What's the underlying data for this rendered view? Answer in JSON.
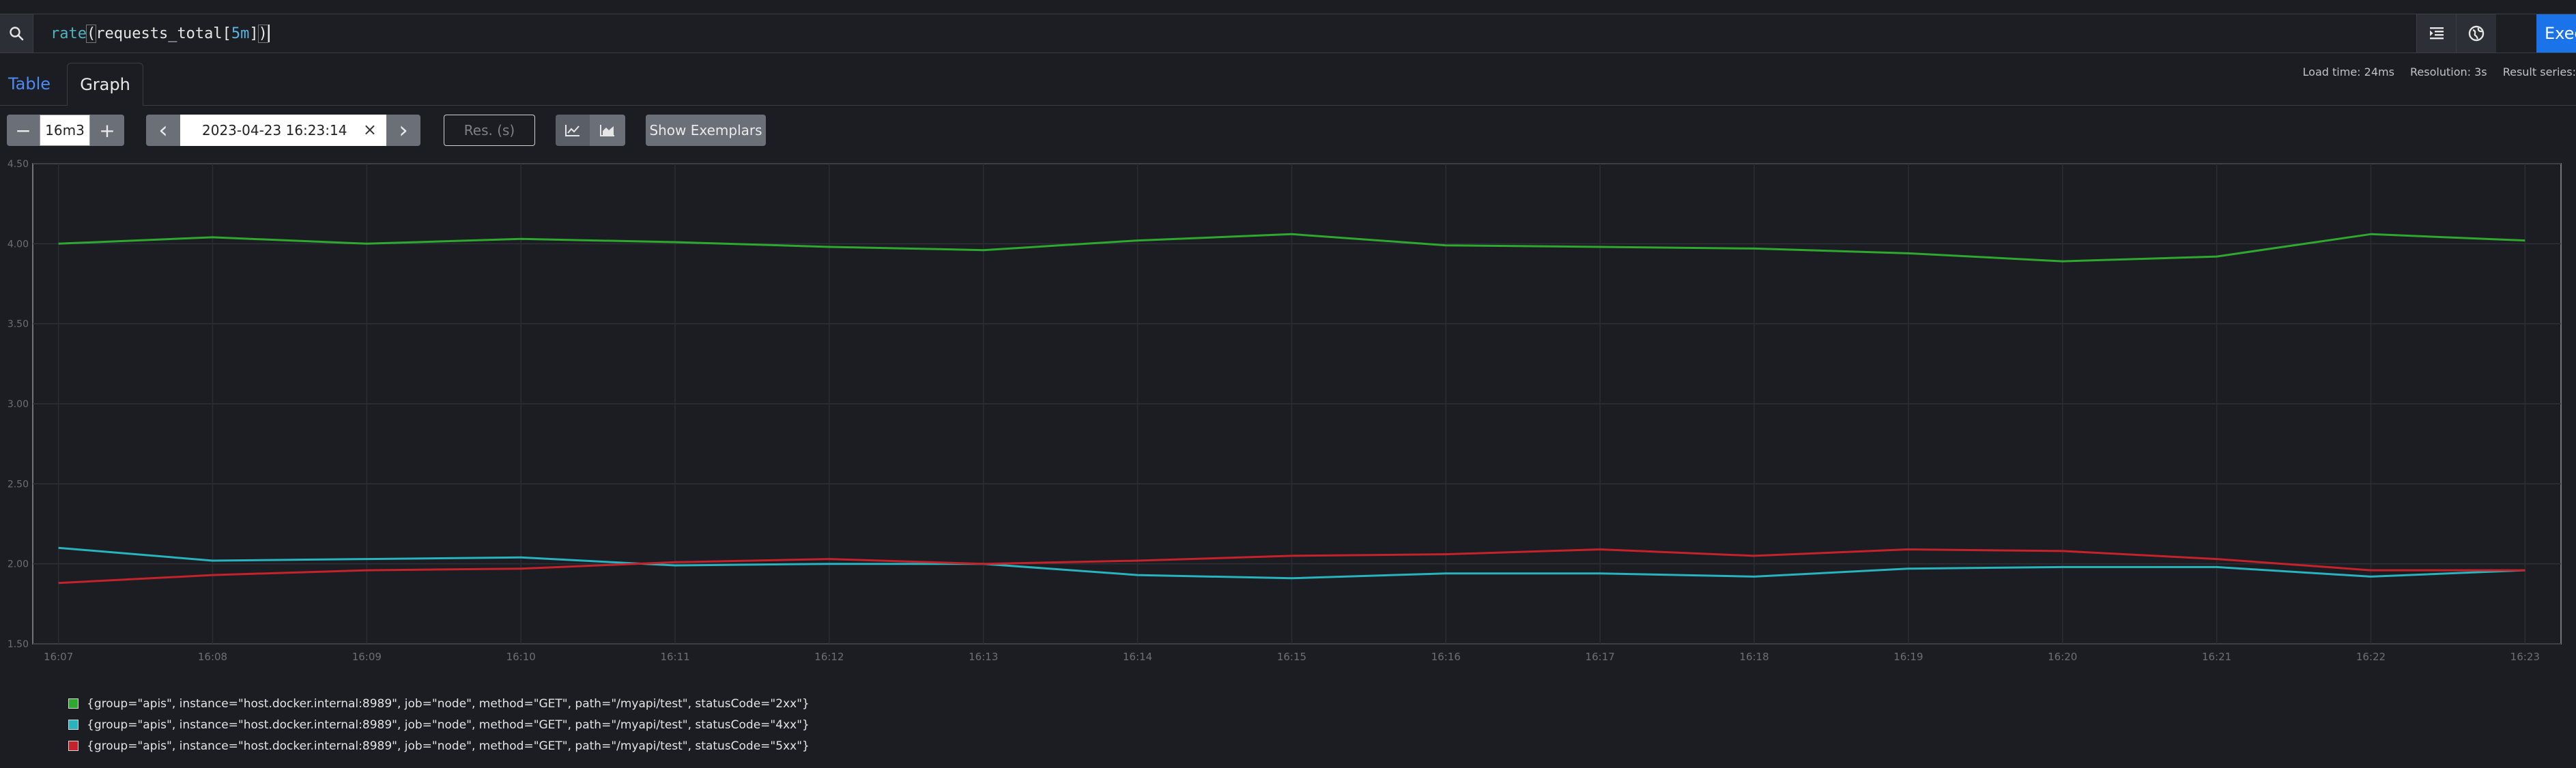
{
  "expression": {
    "fn": "rate",
    "open_paren": "(",
    "metric": "requests_total",
    "range_open": "[",
    "range_value": "5m",
    "range_close": "]",
    "close_paren": ")"
  },
  "toolbar": {
    "execute_label": "Execute",
    "icons": [
      "search-icon",
      "format-icon",
      "globe-icon"
    ]
  },
  "tabs": {
    "table": "Table",
    "graph": "Graph"
  },
  "stats": {
    "load_time": "Load time: 24ms",
    "resolution": "Resolution: 3s",
    "result_series": "Result series:"
  },
  "controls": {
    "minus": "−",
    "range": "16m3",
    "plus": "+",
    "prev": "‹",
    "end_time": "2023-04-23 16:23:14",
    "clear": "×",
    "next": "›",
    "res_placeholder": "Res. (s)",
    "show_exemplars": "Show Exemplars"
  },
  "chart_data": {
    "type": "line",
    "ylim": [
      1.5,
      4.5
    ],
    "y_ticks": [
      "1.50",
      "2.00",
      "2.50",
      "3.00",
      "3.50",
      "4.00",
      "4.50"
    ],
    "x_ticks": [
      "16:07",
      "16:08",
      "16:09",
      "16:10",
      "16:11",
      "16:12",
      "16:13",
      "16:14",
      "16:15",
      "16:16",
      "16:17",
      "16:18",
      "16:19",
      "16:20",
      "16:21",
      "16:22",
      "16:23"
    ],
    "x_range": [
      "16:06:50",
      "16:23:14"
    ],
    "grid": true,
    "series": [
      {
        "color": "#2ea82e",
        "x": [
          "16:07",
          "16:08",
          "16:09",
          "16:10",
          "16:11",
          "16:12",
          "16:13",
          "16:14",
          "16:15",
          "16:16",
          "16:17",
          "16:18",
          "16:19",
          "16:20",
          "16:21",
          "16:22",
          "16:23"
        ],
        "values": [
          4.0,
          4.04,
          4.0,
          4.03,
          4.01,
          3.98,
          3.96,
          4.02,
          4.06,
          3.99,
          3.98,
          3.97,
          3.94,
          3.89,
          3.92,
          4.06,
          4.02
        ]
      },
      {
        "color": "#28b3bd",
        "x": [
          "16:07",
          "16:08",
          "16:09",
          "16:10",
          "16:11",
          "16:12",
          "16:13",
          "16:14",
          "16:15",
          "16:16",
          "16:17",
          "16:18",
          "16:19",
          "16:20",
          "16:21",
          "16:22",
          "16:23"
        ],
        "values": [
          2.1,
          2.02,
          2.03,
          2.04,
          1.99,
          2.0,
          2.0,
          1.93,
          1.91,
          1.94,
          1.94,
          1.92,
          1.97,
          1.98,
          1.98,
          1.92,
          1.96
        ]
      },
      {
        "color": "#c4232b",
        "x": [
          "16:07",
          "16:08",
          "16:09",
          "16:10",
          "16:11",
          "16:12",
          "16:13",
          "16:14",
          "16:15",
          "16:16",
          "16:17",
          "16:18",
          "16:19",
          "16:20",
          "16:21",
          "16:22",
          "16:23"
        ],
        "values": [
          1.88,
          1.93,
          1.96,
          1.97,
          2.01,
          2.03,
          2.0,
          2.02,
          2.05,
          2.06,
          2.09,
          2.05,
          2.09,
          2.08,
          2.03,
          1.96,
          1.96
        ]
      }
    ]
  },
  "legend": [
    {
      "color": "#2ea82e",
      "label": "{group=\"apis\", instance=\"host.docker.internal:8989\", job=\"node\", method=\"GET\", path=\"/myapi/test\", statusCode=\"2xx\"}"
    },
    {
      "color": "#28b3bd",
      "label": "{group=\"apis\", instance=\"host.docker.internal:8989\", job=\"node\", method=\"GET\", path=\"/myapi/test\", statusCode=\"4xx\"}"
    },
    {
      "color": "#c4232b",
      "label": "{group=\"apis\", instance=\"host.docker.internal:8989\", job=\"node\", method=\"GET\", path=\"/myapi/test\", statusCode=\"5xx\"}"
    }
  ]
}
